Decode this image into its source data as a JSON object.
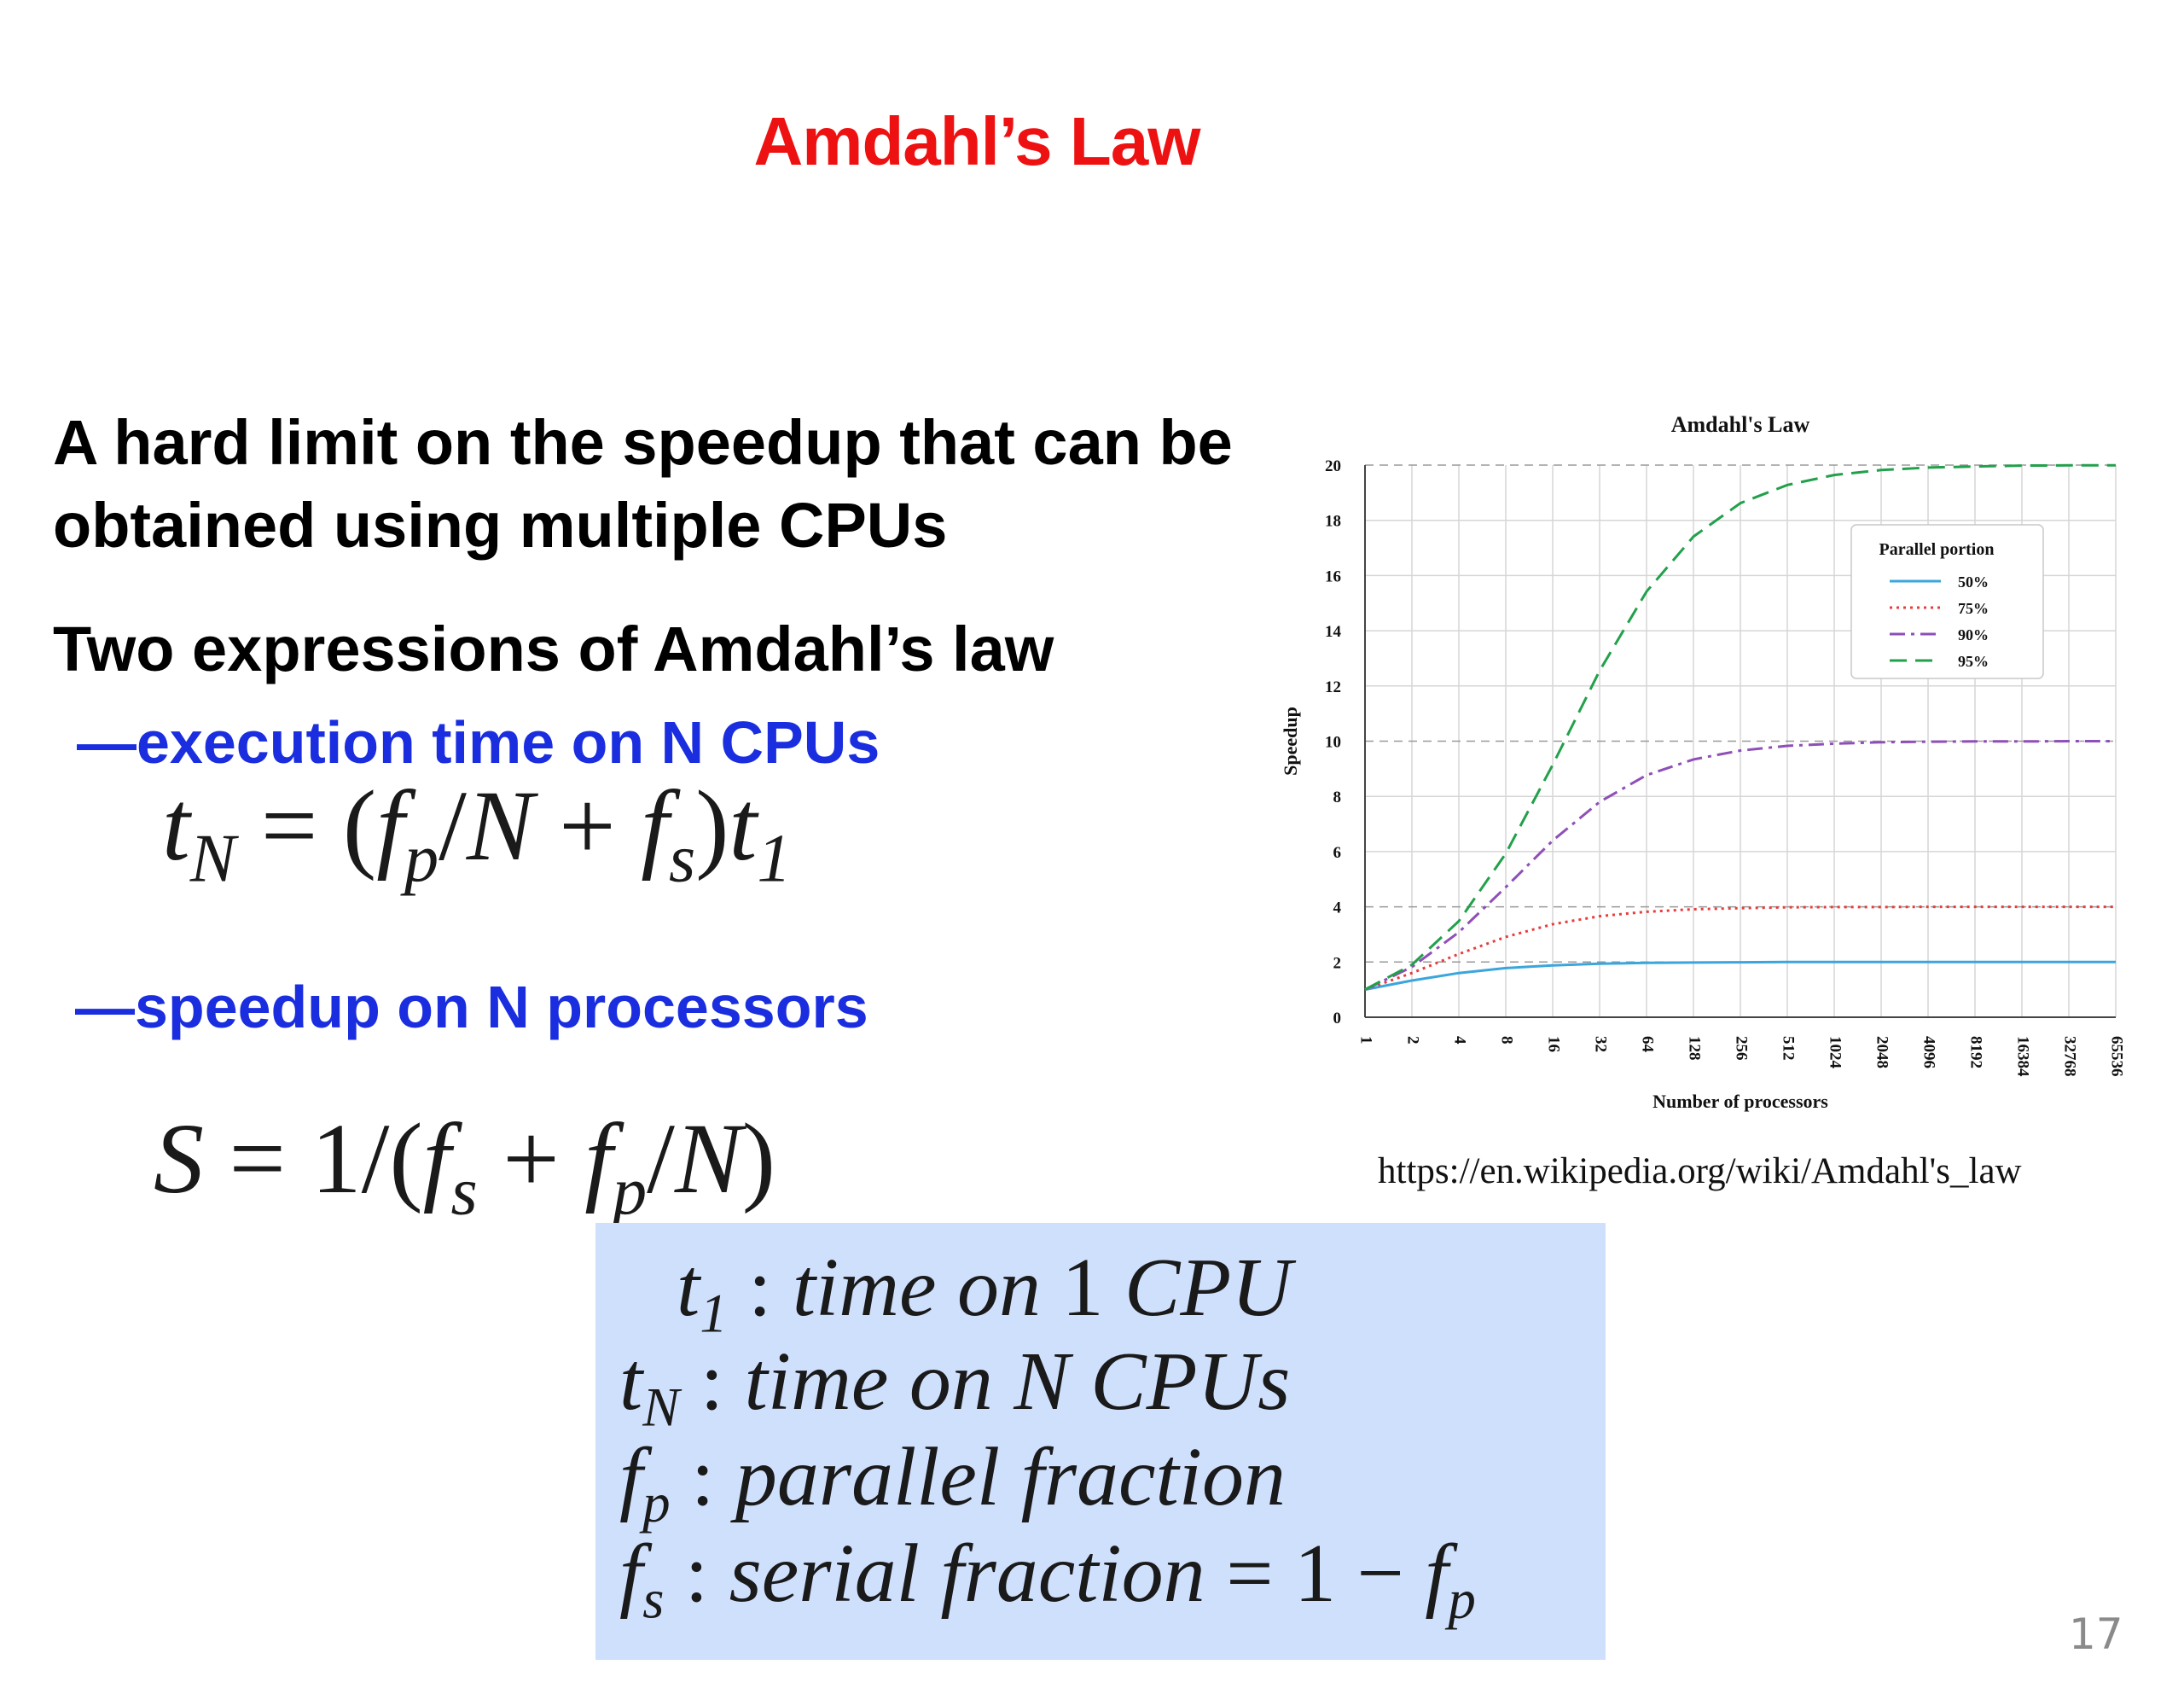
{
  "slide": {
    "title": "Amdahl’s Law",
    "bullet1": "A hard limit on the speedup that can be obtained using multiple CPUs",
    "bullet2": "Two expressions of Amdahl’s law",
    "sub1": "—execution time on N CPUs",
    "sub2": "—speedup on N processors",
    "source": "https://en.wikipedia.org/wiki/Amdahl's_law",
    "page_number": "17"
  },
  "equations": {
    "eq1": {
      "lhs": "t",
      "lhs_sub": "N",
      "eq": "=",
      "open": "(",
      "fp": "f",
      "fp_sub": "p",
      "slash": "/",
      "n": "N",
      "plus": "+",
      "fs": "f",
      "fs_sub": "s",
      "close": ")",
      "t": "t",
      "t_sub": "1"
    },
    "eq2": {
      "lhs": "S",
      "eq": "=",
      "one": "1",
      "slash": "/",
      "open": "(",
      "fs": "f",
      "fs_sub": "s",
      "plus": "+",
      "fp": "f",
      "fp_sub": "p",
      "slash2": "/",
      "n": "N",
      "close": ")"
    }
  },
  "definitions": [
    {
      "sym": "t",
      "sub": "1",
      "colon": ":",
      "desc": "time on",
      "extra": "1",
      "tail": "CPU"
    },
    {
      "sym": "t",
      "sub": "N",
      "colon": ":",
      "desc": "time on",
      "extra": "N",
      "tail": "CPUs"
    },
    {
      "sym": "f",
      "sub": "p",
      "colon": ":",
      "desc": "parallel fraction"
    },
    {
      "sym": "f",
      "sub": "s",
      "colon": ":",
      "desc": "serial fraction",
      "eq": "= 1 −",
      "fsym": "f",
      "fsub": "p"
    }
  ],
  "chart_data": {
    "type": "line",
    "title": "Amdahl's Law",
    "xlabel": "Number of processors",
    "ylabel": "Speedup",
    "x_scale": "log2",
    "x": [
      1,
      2,
      4,
      8,
      16,
      32,
      64,
      128,
      256,
      512,
      1024,
      2048,
      4096,
      8192,
      16384,
      32768,
      65536
    ],
    "x_tick_labels": [
      "1",
      "2",
      "4",
      "8",
      "16",
      "32",
      "64",
      "128",
      "256",
      "512",
      "1024",
      "2048",
      "4096",
      "8192",
      "16384",
      "32768",
      "65536"
    ],
    "ylim": [
      0,
      20
    ],
    "y_ticks": [
      0,
      2,
      4,
      6,
      8,
      10,
      12,
      14,
      16,
      18,
      20
    ],
    "grid": true,
    "legend": {
      "title": "Parallel portion",
      "placement": "top-right"
    },
    "series": [
      {
        "name": "50%",
        "color": "#3aa6dd",
        "dash": "solid",
        "values": [
          1.0,
          1.33,
          1.6,
          1.78,
          1.88,
          1.94,
          1.97,
          1.98,
          1.99,
          2.0,
          2.0,
          2.0,
          2.0,
          2.0,
          2.0,
          2.0,
          2.0
        ]
      },
      {
        "name": "75%",
        "color": "#e83b3b",
        "dash": "dotted",
        "values": [
          1.0,
          1.6,
          2.29,
          2.91,
          3.37,
          3.66,
          3.82,
          3.91,
          3.95,
          3.98,
          3.99,
          3.99,
          4.0,
          4.0,
          4.0,
          4.0,
          4.0
        ]
      },
      {
        "name": "90%",
        "color": "#8e4fb8",
        "dash": "dashdot",
        "values": [
          1.0,
          1.82,
          3.08,
          4.71,
          6.4,
          7.8,
          8.77,
          9.34,
          9.66,
          9.83,
          9.91,
          9.96,
          9.98,
          9.99,
          9.99,
          10.0,
          10.0
        ]
      },
      {
        "name": "95%",
        "color": "#22a04b",
        "dash": "dashed",
        "values": [
          1.0,
          1.9,
          3.48,
          5.93,
          9.14,
          12.55,
          15.42,
          17.41,
          18.62,
          19.28,
          19.64,
          19.82,
          19.91,
          19.95,
          19.98,
          19.99,
          19.99
        ]
      }
    ]
  }
}
